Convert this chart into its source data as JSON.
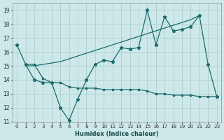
{
  "xlabel": "Humidex (Indice chaleur)",
  "bg_color": "#cde8e8",
  "line_color": "#1a6b6b",
  "grid_color": "#aed0d0",
  "xlim": [
    -0.5,
    23.5
  ],
  "ylim": [
    11.0,
    19.5
  ],
  "yticks": [
    11,
    12,
    13,
    14,
    15,
    16,
    17,
    18,
    19
  ],
  "xticks": [
    0,
    1,
    2,
    3,
    4,
    5,
    6,
    7,
    8,
    9,
    10,
    11,
    12,
    13,
    14,
    15,
    16,
    17,
    18,
    19,
    20,
    21,
    22,
    23
  ],
  "series1_x": [
    0,
    1,
    2,
    3,
    4,
    5,
    6,
    7,
    8,
    9,
    10,
    11,
    12,
    13,
    14,
    15,
    16,
    17,
    18,
    19,
    20,
    21,
    22,
    23
  ],
  "series1_y": [
    16.5,
    15.1,
    14.0,
    13.8,
    13.8,
    12.0,
    11.1,
    12.6,
    14.0,
    15.1,
    15.4,
    15.3,
    16.3,
    16.2,
    16.3,
    19.0,
    16.5,
    18.5,
    17.5,
    17.6,
    17.8,
    18.6,
    15.1,
    12.8
  ],
  "series2_x": [
    1,
    2,
    3,
    4,
    5,
    6,
    7,
    8,
    9,
    10,
    11,
    12,
    13,
    14,
    15,
    16,
    17,
    18,
    19,
    20,
    21
  ],
  "series2_y": [
    15.0,
    15.0,
    15.1,
    15.2,
    15.3,
    15.5,
    15.7,
    15.9,
    16.1,
    16.3,
    16.5,
    16.7,
    16.9,
    17.1,
    17.3,
    17.5,
    17.7,
    17.9,
    18.1,
    18.3,
    18.6
  ],
  "series3_x": [
    1,
    2,
    3,
    4,
    5,
    6,
    7,
    8,
    9,
    10,
    11,
    12,
    13,
    14,
    15,
    16,
    17,
    18,
    19,
    20,
    21,
    22,
    23
  ],
  "series3_y": [
    15.1,
    15.1,
    14.1,
    13.8,
    13.8,
    13.5,
    13.4,
    13.4,
    13.4,
    13.3,
    13.3,
    13.3,
    13.3,
    13.3,
    13.2,
    13.0,
    13.0,
    12.9,
    12.9,
    12.9,
    12.8,
    12.8,
    12.8
  ]
}
